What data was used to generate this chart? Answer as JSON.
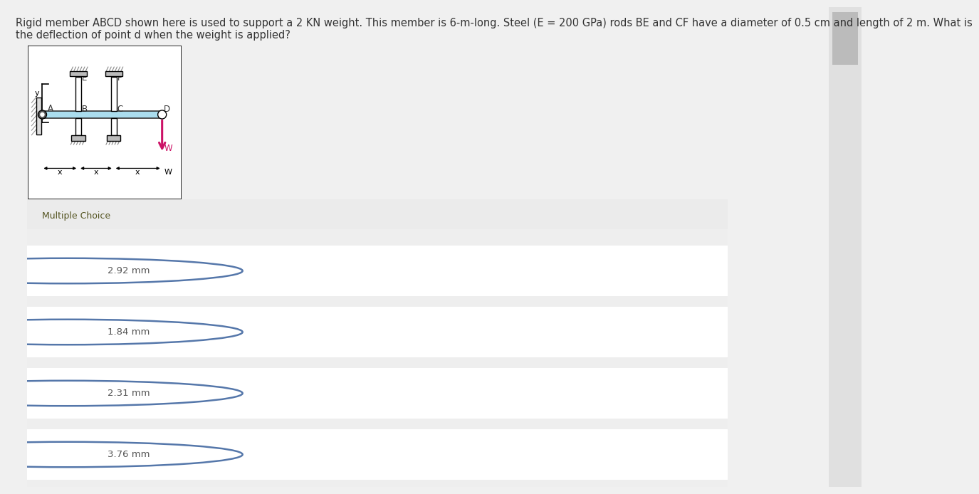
{
  "title_text1": "Rigid member ABCD shown here is used to support a 2 KN weight. This member is 6-m-long. Steel (E = 200 GPa) rods BE and CF have a diameter of 0.5 cm and length of 2 m. What is",
  "title_text2": "the deflection of point d when the weight is applied?",
  "title_color": "#333333",
  "title_fontsize": 10.5,
  "mc_label": "Multiple Choice",
  "mc_color": "#666633",
  "mc_fontsize": 9,
  "mc_bg": "#eeeeee",
  "choices": [
    "2.92 mm",
    "1.84 mm",
    "2.31 mm",
    "3.76 mm"
  ],
  "choice_fontsize": 9.5,
  "choice_color": "#555555",
  "page_bg": "#f0f0f0",
  "content_bg": "#f0f0f0",
  "choice_box_bg": "#ffffff",
  "gap_bg": "#eeeeee",
  "choice_circle_color": "#5577aa",
  "diagram_bg": "#ffffff",
  "diagram_border": "#000000",
  "beam_color": "#aaddee",
  "beam_border": "#333333",
  "arrow_color": "#cc1166",
  "wall_hatch_color": "#999999",
  "label_color": "#333333",
  "scrollbar_color": "#cccccc"
}
